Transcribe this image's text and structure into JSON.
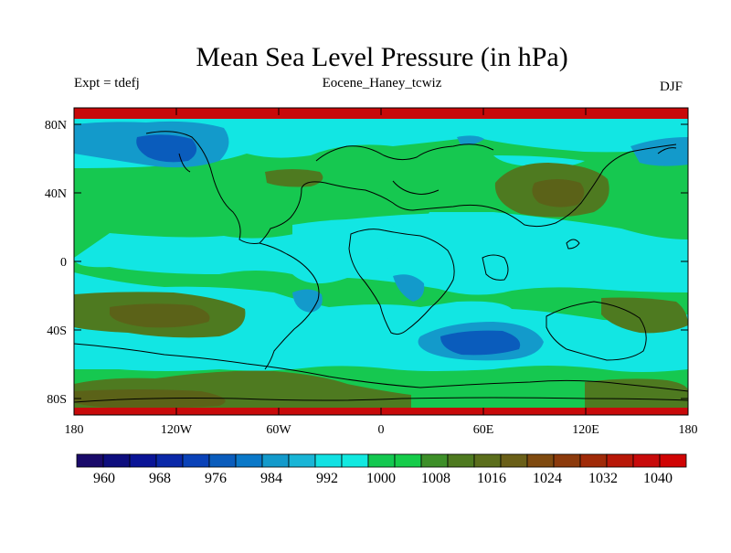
{
  "header": {
    "title": "Mean Sea Level Pressure (in hPa)",
    "experiment": "Expt = tdefj",
    "run_name": "Eocene_Haney_tcwiz",
    "season": "DJF"
  },
  "map": {
    "lat_labels": [
      "80N",
      "40N",
      "0",
      "40S",
      "80S"
    ],
    "lon_labels": [
      "180",
      "120W",
      "60W",
      "0",
      "60E",
      "120E",
      "180"
    ]
  },
  "colorbar": {
    "labels": [
      "960",
      "968",
      "976",
      "984",
      "992",
      "1000",
      "1008",
      "1016",
      "1024",
      "1032",
      "1040"
    ],
    "colors": [
      "#1a0a6a",
      "#0e0e7e",
      "#0a1496",
      "#0a28a8",
      "#0a42b8",
      "#0a5cbc",
      "#0a78c8",
      "#139acb",
      "#19b5d6",
      "#12e1e3",
      "#12e9e0",
      "#14c850",
      "#16cc4a",
      "#3d8f28",
      "#4e7a20",
      "#5b6e1c",
      "#6a5f18",
      "#7f4a10",
      "#8c3a0c",
      "#a02a08",
      "#b81808",
      "#c80a0a",
      "#d00404"
    ]
  }
}
